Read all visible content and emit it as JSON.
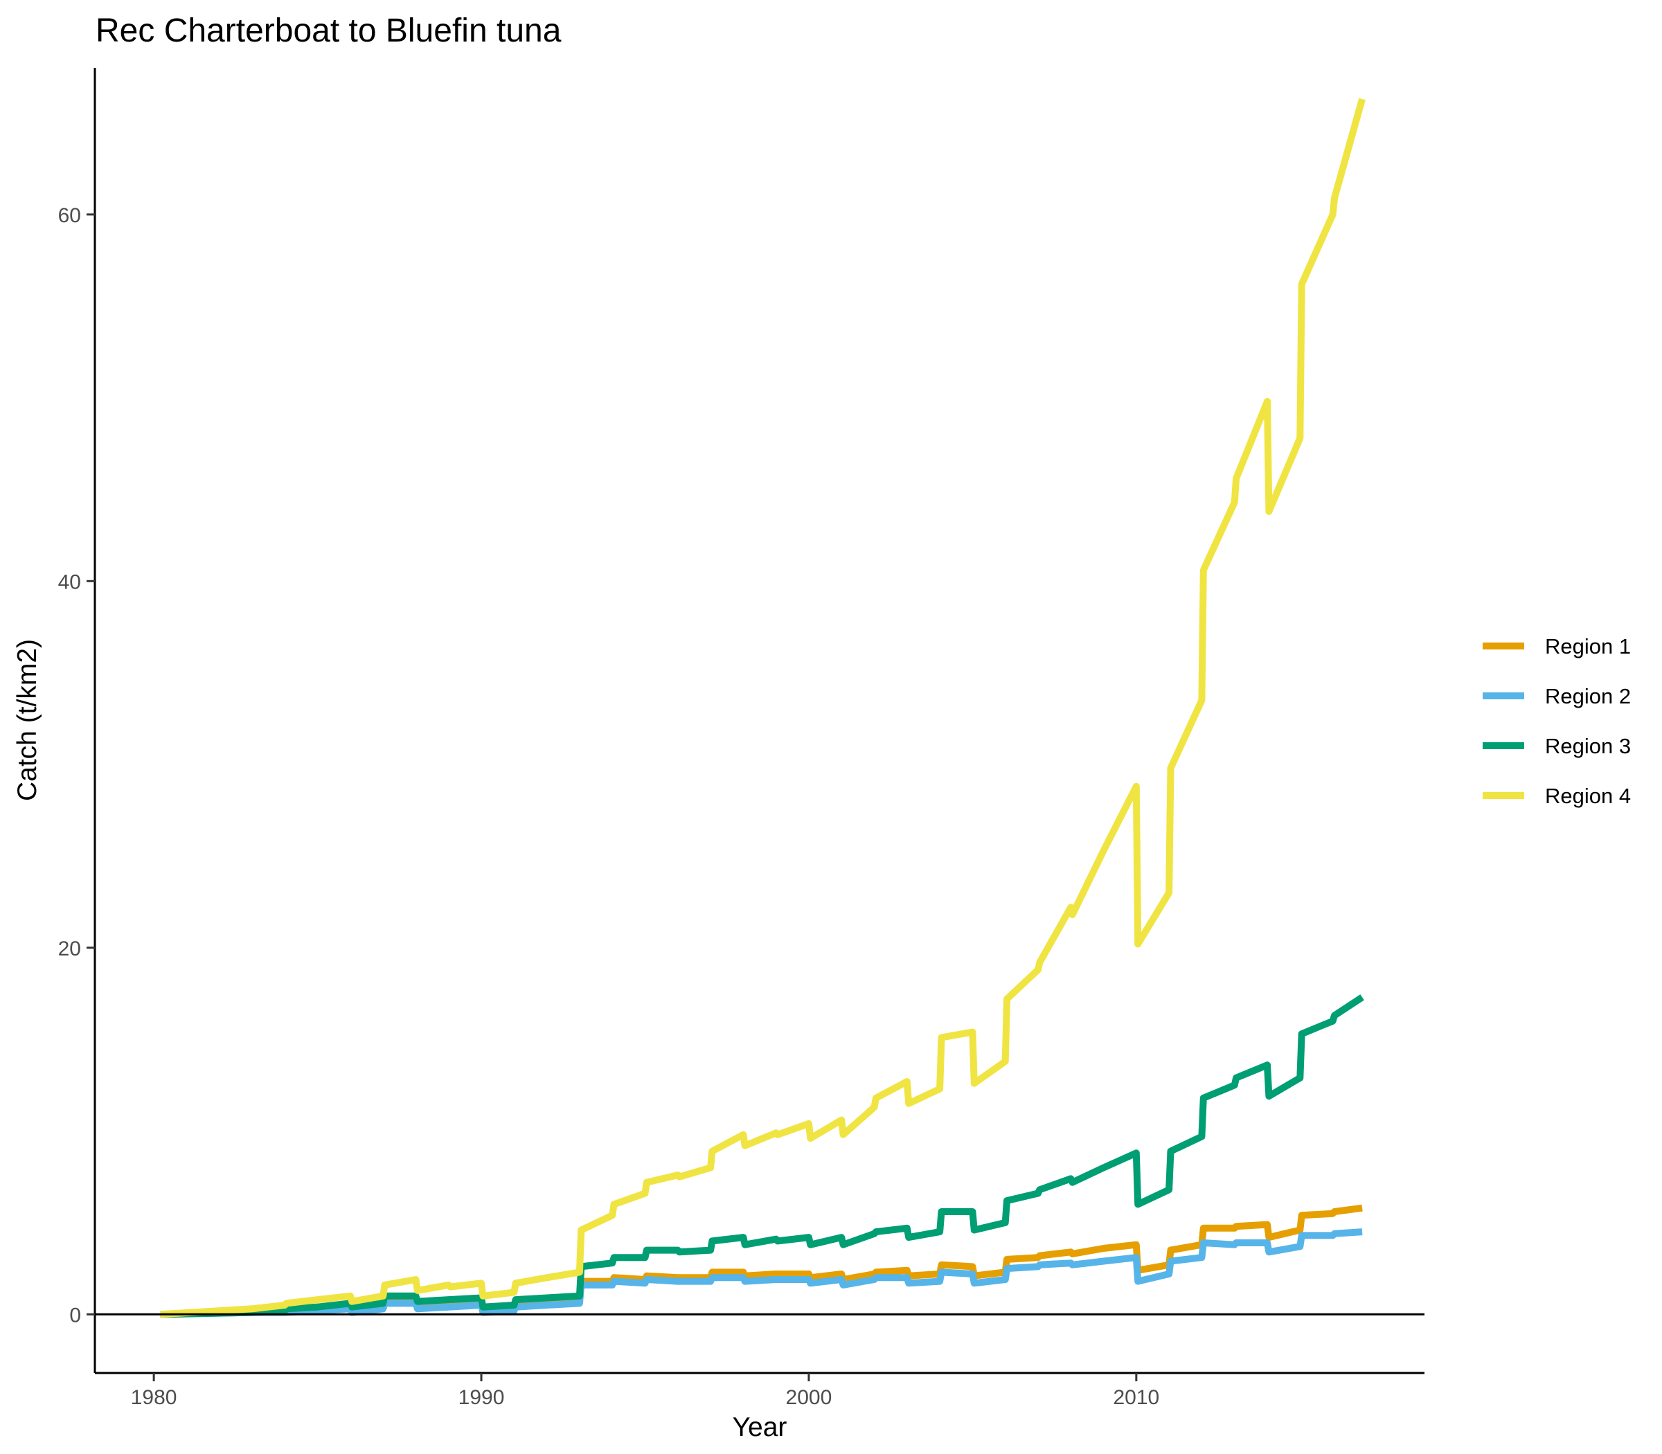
{
  "chart_data": {
    "type": "line",
    "title": "Rec Charterboat to Bluefin tuna",
    "xlabel": "Year",
    "ylabel": "Catch (t/km2)",
    "xlim": [
      1978.2,
      2018.8
    ],
    "ylim": [
      -3.2,
      68
    ],
    "xticks": [
      1980,
      1990,
      2000,
      2010
    ],
    "yticks": [
      0,
      20,
      40,
      60
    ],
    "grid": false,
    "zero_line": true,
    "legend_position": "right",
    "series": [
      {
        "name": "Region 1",
        "color": "#E69F00",
        "points": [
          [
            1980.2,
            0
          ],
          [
            1983,
            0.2
          ],
          [
            1984,
            0.3
          ],
          [
            1985,
            0.4
          ],
          [
            1986,
            0.5
          ],
          [
            1986.05,
            0.3
          ],
          [
            1987,
            0.5
          ],
          [
            1987.05,
            0.8
          ],
          [
            1988,
            0.9
          ],
          [
            1988.05,
            0.5
          ],
          [
            1989,
            0.6
          ],
          [
            1990,
            0.7
          ],
          [
            1990.05,
            0.2
          ],
          [
            1991,
            0.3
          ],
          [
            1991.05,
            0.5
          ],
          [
            1992,
            0.6
          ],
          [
            1993,
            0.8
          ],
          [
            1993.05,
            1.8
          ],
          [
            1994,
            1.8
          ],
          [
            1994.05,
            2.0
          ],
          [
            1995,
            1.9
          ],
          [
            1995.05,
            2.1
          ],
          [
            1996,
            2.0
          ],
          [
            1997,
            2.0
          ],
          [
            1997.05,
            2.3
          ],
          [
            1998,
            2.3
          ],
          [
            1998.05,
            2.1
          ],
          [
            1999,
            2.2
          ],
          [
            2000,
            2.2
          ],
          [
            2000.05,
            2.0
          ],
          [
            2001,
            2.2
          ],
          [
            2001.05,
            1.9
          ],
          [
            2002,
            2.2
          ],
          [
            2002.05,
            2.3
          ],
          [
            2003,
            2.4
          ],
          [
            2003.05,
            2.1
          ],
          [
            2004,
            2.2
          ],
          [
            2004.05,
            2.7
          ],
          [
            2005,
            2.6
          ],
          [
            2005.05,
            2.1
          ],
          [
            2006,
            2.3
          ],
          [
            2006.05,
            3.0
          ],
          [
            2007,
            3.1
          ],
          [
            2007.05,
            3.2
          ],
          [
            2008,
            3.4
          ],
          [
            2008.05,
            3.3
          ],
          [
            2009,
            3.6
          ],
          [
            2010,
            3.8
          ],
          [
            2010.05,
            2.4
          ],
          [
            2011,
            2.7
          ],
          [
            2011.05,
            3.5
          ],
          [
            2012,
            3.8
          ],
          [
            2012.05,
            4.7
          ],
          [
            2013,
            4.7
          ],
          [
            2013.05,
            4.8
          ],
          [
            2014,
            4.9
          ],
          [
            2014.05,
            4.2
          ],
          [
            2015,
            4.6
          ],
          [
            2015.05,
            5.4
          ],
          [
            2016,
            5.5
          ],
          [
            2016.05,
            5.6
          ],
          [
            2016.9,
            5.8
          ]
        ]
      },
      {
        "name": "Region 2",
        "color": "#56B4E9",
        "points": [
          [
            1980.2,
            0
          ],
          [
            1983,
            0.1
          ],
          [
            1984,
            0.1
          ],
          [
            1985,
            0.2
          ],
          [
            1986,
            0.3
          ],
          [
            1986.05,
            0.1
          ],
          [
            1987,
            0.3
          ],
          [
            1987.05,
            0.6
          ],
          [
            1988,
            0.6
          ],
          [
            1988.05,
            0.3
          ],
          [
            1989,
            0.4
          ],
          [
            1990,
            0.5
          ],
          [
            1990.05,
            0.1
          ],
          [
            1991,
            0.2
          ],
          [
            1991.05,
            0.4
          ],
          [
            1992,
            0.5
          ],
          [
            1993,
            0.6
          ],
          [
            1993.05,
            1.6
          ],
          [
            1994,
            1.6
          ],
          [
            1994.05,
            1.8
          ],
          [
            1995,
            1.7
          ],
          [
            1995.05,
            1.9
          ],
          [
            1996,
            1.8
          ],
          [
            1997,
            1.8
          ],
          [
            1997.05,
            2.0
          ],
          [
            1998,
            2.0
          ],
          [
            1998.05,
            1.8
          ],
          [
            1999,
            1.9
          ],
          [
            2000,
            1.9
          ],
          [
            2000.05,
            1.7
          ],
          [
            2001,
            1.9
          ],
          [
            2001.05,
            1.6
          ],
          [
            2002,
            1.9
          ],
          [
            2002.05,
            2.0
          ],
          [
            2003,
            2.0
          ],
          [
            2003.05,
            1.7
          ],
          [
            2004,
            1.8
          ],
          [
            2004.05,
            2.3
          ],
          [
            2005,
            2.2
          ],
          [
            2005.05,
            1.7
          ],
          [
            2006,
            1.9
          ],
          [
            2006.05,
            2.5
          ],
          [
            2007,
            2.6
          ],
          [
            2007.05,
            2.7
          ],
          [
            2008,
            2.8
          ],
          [
            2008.05,
            2.7
          ],
          [
            2009,
            2.9
          ],
          [
            2010,
            3.1
          ],
          [
            2010.05,
            1.8
          ],
          [
            2011,
            2.2
          ],
          [
            2011.05,
            2.9
          ],
          [
            2012,
            3.1
          ],
          [
            2012.05,
            3.9
          ],
          [
            2013,
            3.8
          ],
          [
            2013.05,
            3.9
          ],
          [
            2014,
            3.9
          ],
          [
            2014.05,
            3.4
          ],
          [
            2015,
            3.7
          ],
          [
            2015.05,
            4.3
          ],
          [
            2016,
            4.3
          ],
          [
            2016.05,
            4.4
          ],
          [
            2016.9,
            4.5
          ]
        ]
      },
      {
        "name": "Region 3",
        "color": "#009E73",
        "points": [
          [
            1980.2,
            0
          ],
          [
            1983,
            0.1
          ],
          [
            1984,
            0.2
          ],
          [
            1984.05,
            0.3
          ],
          [
            1985,
            0.4
          ],
          [
            1986,
            0.6
          ],
          [
            1986.05,
            0.4
          ],
          [
            1987,
            0.6
          ],
          [
            1987.05,
            1.0
          ],
          [
            1988,
            1.0
          ],
          [
            1988.05,
            0.7
          ],
          [
            1989,
            0.8
          ],
          [
            1990,
            0.9
          ],
          [
            1990.05,
            0.4
          ],
          [
            1991,
            0.5
          ],
          [
            1991.05,
            0.8
          ],
          [
            1992,
            0.9
          ],
          [
            1993,
            1.0
          ],
          [
            1993.05,
            2.6
          ],
          [
            1994,
            2.8
          ],
          [
            1994.05,
            3.1
          ],
          [
            1995,
            3.1
          ],
          [
            1995.05,
            3.5
          ],
          [
            1996,
            3.5
          ],
          [
            1996.05,
            3.4
          ],
          [
            1997,
            3.5
          ],
          [
            1997.05,
            4.0
          ],
          [
            1998,
            4.2
          ],
          [
            1998.05,
            3.8
          ],
          [
            1999,
            4.1
          ],
          [
            1999.05,
            4.0
          ],
          [
            2000,
            4.2
          ],
          [
            2000.05,
            3.8
          ],
          [
            2001,
            4.2
          ],
          [
            2001.05,
            3.8
          ],
          [
            2002,
            4.4
          ],
          [
            2002.05,
            4.5
          ],
          [
            2003,
            4.7
          ],
          [
            2003.05,
            4.2
          ],
          [
            2004,
            4.5
          ],
          [
            2004.05,
            5.6
          ],
          [
            2005,
            5.6
          ],
          [
            2005.05,
            4.6
          ],
          [
            2006,
            5.0
          ],
          [
            2006.05,
            6.2
          ],
          [
            2007,
            6.6
          ],
          [
            2007.05,
            6.8
          ],
          [
            2008,
            7.4
          ],
          [
            2008.05,
            7.2
          ],
          [
            2009,
            8.0
          ],
          [
            2010,
            8.8
          ],
          [
            2010.05,
            6.0
          ],
          [
            2011,
            6.8
          ],
          [
            2011.05,
            8.9
          ],
          [
            2012,
            9.7
          ],
          [
            2012.05,
            11.8
          ],
          [
            2013,
            12.5
          ],
          [
            2013.05,
            12.9
          ],
          [
            2014,
            13.6
          ],
          [
            2014.05,
            11.9
          ],
          [
            2015,
            12.9
          ],
          [
            2015.05,
            15.3
          ],
          [
            2016,
            16.0
          ],
          [
            2016.05,
            16.3
          ],
          [
            2016.9,
            17.3
          ]
        ]
      },
      {
        "name": "Region 4",
        "color": "#F0E442",
        "points": [
          [
            1980.2,
            0
          ],
          [
            1983,
            0.3
          ],
          [
            1984,
            0.5
          ],
          [
            1984.05,
            0.6
          ],
          [
            1985,
            0.8
          ],
          [
            1986,
            1.0
          ],
          [
            1986.05,
            0.7
          ],
          [
            1987,
            1.0
          ],
          [
            1987.05,
            1.6
          ],
          [
            1988,
            1.9
          ],
          [
            1988.05,
            1.3
          ],
          [
            1989,
            1.6
          ],
          [
            1989.05,
            1.5
          ],
          [
            1990,
            1.7
          ],
          [
            1990.05,
            1.0
          ],
          [
            1991,
            1.2
          ],
          [
            1991.05,
            1.7
          ],
          [
            1992,
            2.0
          ],
          [
            1993,
            2.3
          ],
          [
            1993.05,
            4.6
          ],
          [
            1994,
            5.4
          ],
          [
            1994.05,
            6.0
          ],
          [
            1995,
            6.6
          ],
          [
            1995.05,
            7.2
          ],
          [
            1996,
            7.6
          ],
          [
            1996.05,
            7.5
          ],
          [
            1997,
            8.0
          ],
          [
            1997.05,
            8.9
          ],
          [
            1998,
            9.8
          ],
          [
            1998.05,
            9.2
          ],
          [
            1999,
            9.9
          ],
          [
            1999.05,
            9.8
          ],
          [
            2000,
            10.4
          ],
          [
            2000.05,
            9.6
          ],
          [
            2001,
            10.6
          ],
          [
            2001.05,
            9.8
          ],
          [
            2002,
            11.3
          ],
          [
            2002.05,
            11.8
          ],
          [
            2003,
            12.7
          ],
          [
            2003.05,
            11.5
          ],
          [
            2004,
            12.3
          ],
          [
            2004.05,
            15.1
          ],
          [
            2005,
            15.4
          ],
          [
            2005.05,
            12.6
          ],
          [
            2006,
            13.8
          ],
          [
            2006.05,
            17.2
          ],
          [
            2007,
            18.8
          ],
          [
            2007.05,
            19.2
          ],
          [
            2008,
            22.2
          ],
          [
            2008.05,
            21.8
          ],
          [
            2009,
            25.3
          ],
          [
            2010,
            28.8
          ],
          [
            2010.05,
            20.2
          ],
          [
            2011,
            23.0
          ],
          [
            2011.05,
            29.8
          ],
          [
            2012,
            33.5
          ],
          [
            2012.05,
            40.6
          ],
          [
            2013,
            44.3
          ],
          [
            2013.05,
            45.6
          ],
          [
            2014,
            49.8
          ],
          [
            2014.05,
            43.8
          ],
          [
            2015,
            47.8
          ],
          [
            2015.05,
            56.2
          ],
          [
            2016,
            60.0
          ],
          [
            2016.05,
            60.9
          ],
          [
            2016.9,
            66.3
          ]
        ]
      }
    ]
  }
}
